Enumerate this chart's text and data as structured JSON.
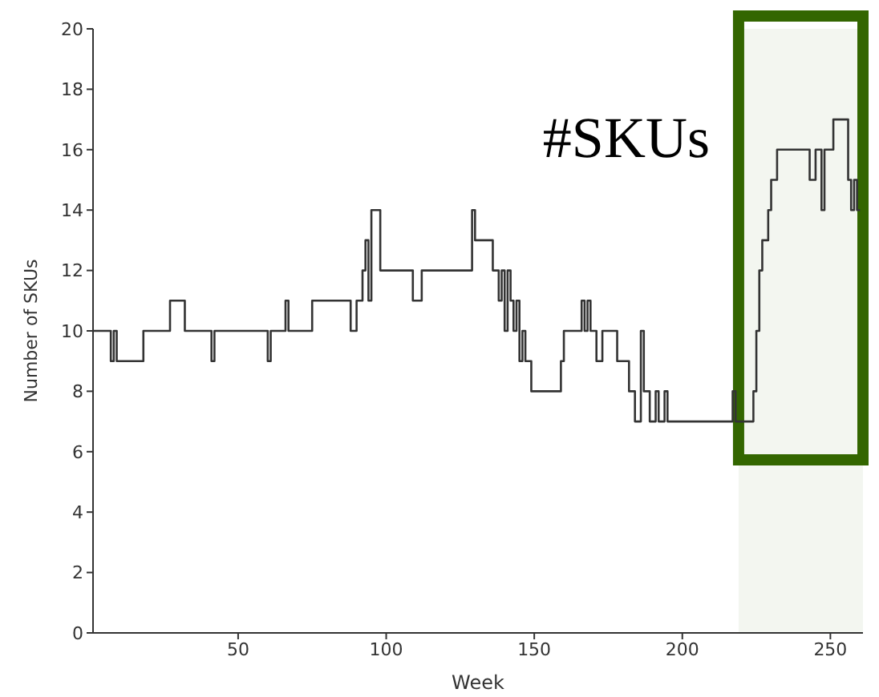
{
  "chart_data": {
    "type": "step",
    "xlabel": "Week",
    "ylabel": "Number of SKUs",
    "x": [
      1,
      6,
      7,
      8,
      9,
      18,
      27,
      32,
      40,
      41,
      42,
      59,
      60,
      61,
      65,
      66,
      67,
      75,
      88,
      90,
      92,
      93,
      94,
      95,
      98,
      109,
      112,
      128,
      129,
      130,
      136,
      138,
      139,
      140,
      141,
      142,
      143,
      144,
      145,
      146,
      147,
      149,
      152,
      155,
      159,
      160,
      166,
      167,
      168,
      169,
      171,
      173,
      178,
      182,
      184,
      186,
      187,
      189,
      191,
      192,
      194,
      195,
      217,
      218,
      224,
      225,
      226,
      227,
      229,
      230,
      232,
      243,
      245,
      247,
      248,
      250,
      251,
      256,
      257,
      258,
      259,
      260
    ],
    "series": [
      {
        "color": "#333333",
        "values": [
          10,
          10,
          9,
          10,
          9,
          10,
          11,
          10,
          10,
          9,
          10,
          10,
          9,
          10,
          10,
          11,
          10,
          11,
          10,
          11,
          12,
          13,
          11,
          14,
          12,
          11,
          12,
          12,
          14,
          13,
          12,
          11,
          12,
          10,
          12,
          11,
          10,
          11,
          9,
          10,
          9,
          8,
          8,
          8,
          9,
          10,
          11,
          10,
          11,
          10,
          9,
          10,
          9,
          8,
          7,
          10,
          8,
          7,
          8,
          7,
          8,
          7,
          8,
          7,
          8,
          10,
          12,
          13,
          14,
          15,
          16,
          15,
          16,
          14,
          16,
          16,
          17,
          15,
          14,
          15,
          14,
          14
        ]
      }
    ],
    "xlim": [
      1,
      261
    ],
    "ylim": [
      0,
      20
    ],
    "xticks": [
      50,
      100,
      150,
      200,
      250
    ],
    "yticks": [
      0,
      2,
      4,
      6,
      8,
      10,
      12,
      14,
      16,
      18,
      20
    ],
    "grid": false,
    "legend": false,
    "marker": "none",
    "line_style": "solid",
    "bands": [
      {
        "axis": "x",
        "from": 219,
        "to": 261,
        "label": "#SKUs",
        "color": "#336600"
      }
    ]
  }
}
